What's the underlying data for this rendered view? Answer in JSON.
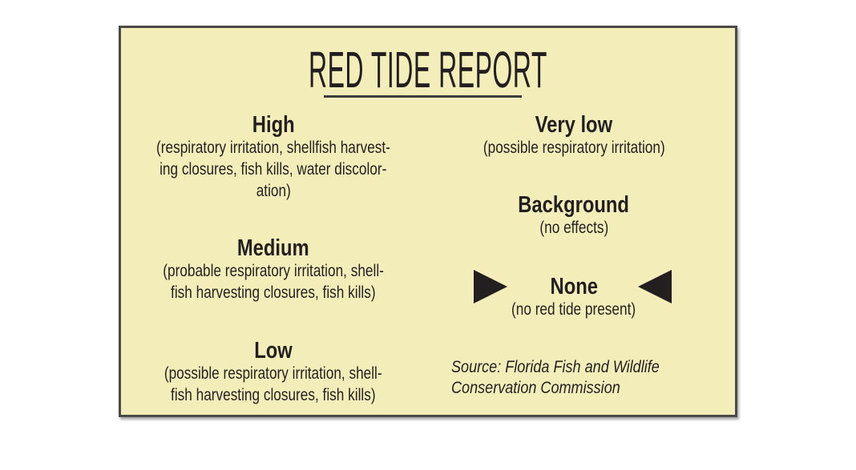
{
  "title": "RED TIDE REPORT",
  "levels": {
    "high": {
      "label": "High",
      "desc": [
        "(respiratory irritation, shellfish harvest-",
        "ing closures, fish kills, water discolor-",
        "ation)"
      ]
    },
    "medium": {
      "label": "Medium",
      "desc": [
        "(probable respiratory irritation, shell-",
        "fish harvesting closures, fish kills)"
      ]
    },
    "low": {
      "label": "Low",
      "desc": [
        "(possible respiratory irritation, shell-",
        "fish harvesting closures, fish kills)"
      ]
    },
    "very_low": {
      "label": "Very low",
      "desc": [
        "(possible respiratory irritation)"
      ]
    },
    "background": {
      "label": "Background",
      "desc": [
        "(no effects)"
      ]
    },
    "none": {
      "label": "None",
      "desc": [
        "(no red tide present)"
      ],
      "highlighted": true
    }
  },
  "source": [
    "Source: Florida Fish and Wildlife",
    "Conservation Commission"
  ],
  "colors": {
    "panel_background": "#f3eeb9",
    "border": "#4a4a48",
    "text": "#231f20"
  }
}
